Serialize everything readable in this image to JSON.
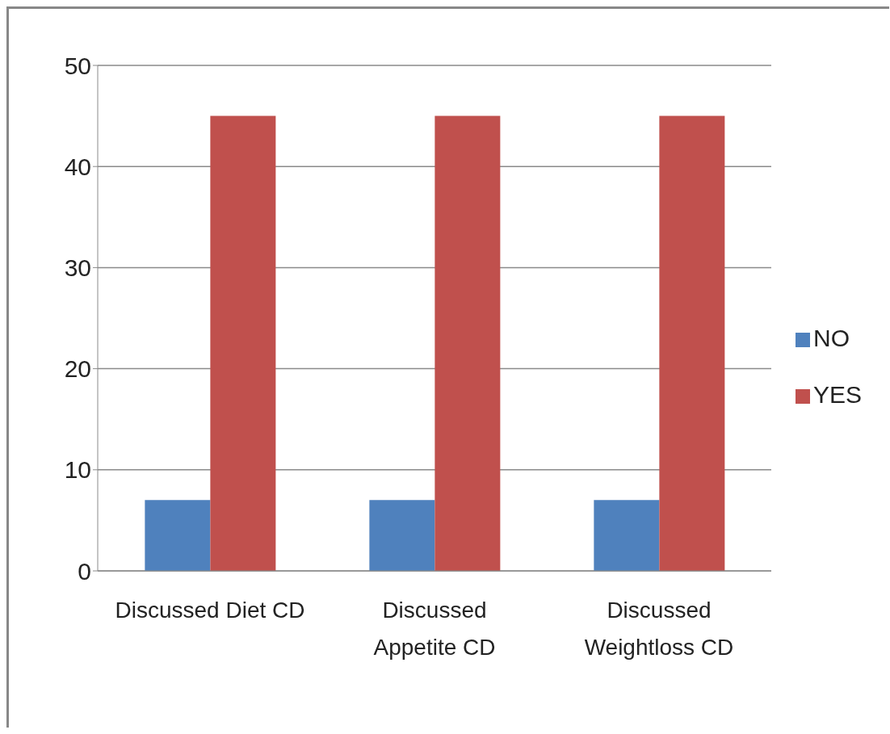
{
  "chart_data": {
    "type": "bar",
    "categories": [
      "Discussed Diet CD",
      "Discussed Appetite CD",
      "Discussed Weightloss CD"
    ],
    "series": [
      {
        "name": "NO",
        "color": "#4f81bd",
        "values": [
          7,
          7,
          7
        ]
      },
      {
        "name": "YES",
        "color": "#c0504d",
        "values": [
          45,
          45,
          45
        ]
      }
    ],
    "ylim": [
      0,
      50
    ],
    "yticks": [
      0,
      10,
      20,
      30,
      40,
      50
    ],
    "grid": "y",
    "legend": "right"
  }
}
